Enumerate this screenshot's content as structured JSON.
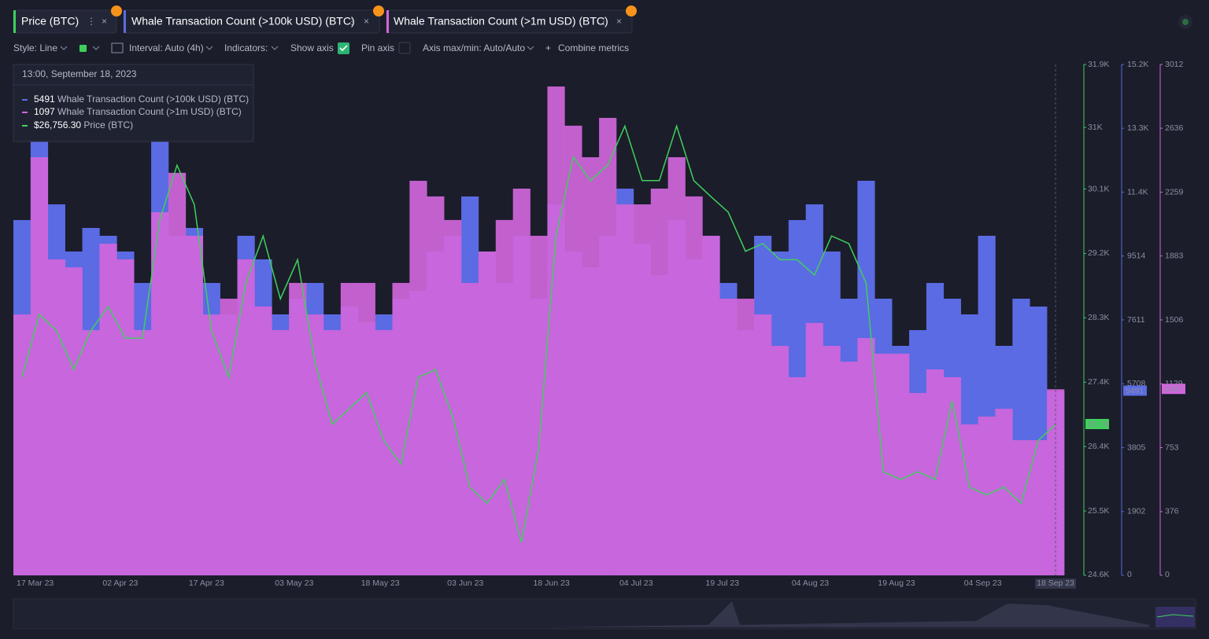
{
  "tabs": [
    "Price (BTC)",
    "Whale Transaction Count (>100k USD) (BTC)",
    "Whale Transaction Count (>1m USD) (BTC)"
  ],
  "toolbar": {
    "style": "Style: Line",
    "interval": "Interval: Auto (4h)",
    "indicators": "Indicators:",
    "show_axis": "Show axis",
    "pin_axis": "Pin axis",
    "axis_maxmin": "Axis max/min: Auto/Auto",
    "combine": "Combine metrics"
  },
  "tooltip": {
    "date": "13:00, September 18, 2023",
    "price_label": "$26,756.30"
  },
  "chart_data": {
    "type": "bar-line",
    "categories": [
      "17 Mar 23",
      null,
      null,
      null,
      null,
      "02 Apr 23",
      null,
      null,
      null,
      null,
      "17 Apr 23",
      null,
      null,
      null,
      null,
      "03 May 23",
      null,
      null,
      null,
      null,
      "18 May 23",
      null,
      null,
      null,
      null,
      "03 Jun 23",
      null,
      null,
      null,
      null,
      "18 Jun 23",
      null,
      null,
      null,
      null,
      "04 Jul 23",
      null,
      null,
      null,
      null,
      "19 Jul 23",
      null,
      null,
      null,
      null,
      "04 Aug 23",
      null,
      null,
      null,
      null,
      "19 Aug 23",
      null,
      null,
      null,
      null,
      "04 Sep 23",
      null,
      null,
      null,
      null,
      "18 Sep 23"
    ],
    "series": [
      {
        "name": "Whale Transaction Count (>100k USD) (BTC)",
        "color": "#5b6be3",
        "axis": "y2",
        "values": [
          10585,
          12927,
          11054,
          9648,
          10351,
          10117,
          9648,
          8712,
          13395,
          10117,
          10351,
          8712,
          7775,
          10117,
          9414,
          7775,
          8243,
          8712,
          7775,
          8009,
          7541,
          7775,
          8243,
          8478,
          9648,
          10117,
          11288,
          9648,
          8712,
          10117,
          8243,
          11054,
          9648,
          9180,
          10117,
          11522,
          9883,
          8946,
          10585,
          9414,
          10117,
          8712,
          7307,
          10117,
          9648,
          10585,
          11054,
          9648,
          8243,
          11756,
          8243,
          6838,
          7307,
          8712,
          8243,
          7775,
          10117,
          6838,
          8243,
          8009,
          5491
        ]
      },
      {
        "name": "Whale Transaction Count (>1m USD) (BTC)",
        "color": "#d066dc",
        "axis": "y3",
        "values": [
          1538,
          2465,
          1863,
          1816,
          1446,
          1955,
          1863,
          1446,
          2141,
          2373,
          2002,
          1538,
          1631,
          1863,
          1585,
          1446,
          1724,
          1538,
          1446,
          1724,
          1724,
          1446,
          1724,
          2326,
          2234,
          2095,
          1724,
          1909,
          2095,
          2280,
          2002,
          2882,
          2651,
          2465,
          2697,
          2187,
          2187,
          2280,
          2465,
          2234,
          2002,
          1631,
          1631,
          1538,
          1353,
          1168,
          1488,
          1353,
          1260,
          1399,
          1307,
          1307,
          1075,
          1214,
          1168,
          890,
          936,
          982,
          797,
          797,
          1097
        ]
      },
      {
        "name": "Price (BTC)",
        "color": "#3fd05c",
        "axis": "y",
        "badge": "26.7K",
        "values": [
          27430,
          28330,
          28100,
          27540,
          28100,
          28440,
          27990,
          27990,
          29680,
          30460,
          29900,
          28100,
          27430,
          28780,
          29450,
          28550,
          29110,
          27650,
          26760,
          26980,
          27210,
          26530,
          26190,
          27430,
          27540,
          26870,
          25860,
          25630,
          25970,
          25070,
          26420,
          29450,
          30580,
          30240,
          30460,
          31020,
          30240,
          30240,
          31020,
          30240,
          30010,
          29790,
          29230,
          29340,
          29110,
          29110,
          28890,
          29450,
          29340,
          28780,
          26080,
          25970,
          26080,
          25970,
          27090,
          25860,
          25750,
          25860,
          25630,
          26530,
          26756.3
        ]
      }
    ],
    "ylim": [
      24600,
      31900
    ],
    "yticks": [
      {
        "value": 24600,
        "label": "24.6K"
      },
      {
        "value": 25520,
        "label": "25.5K"
      },
      {
        "value": 26440,
        "label": "26.4K"
      },
      {
        "value": 27360,
        "label": "27.4K"
      },
      {
        "value": 28280,
        "label": "28.3K"
      },
      {
        "value": 29200,
        "label": "29.2K"
      },
      {
        "value": 30120,
        "label": "30.1K"
      },
      {
        "value": 31000,
        "label": "31K"
      },
      {
        "value": 31900,
        "label": "31.9K"
      }
    ],
    "y2lim": [
      0,
      15222
    ],
    "y2ticks": [
      0,
      1902,
      3805,
      5708,
      7611,
      9514,
      {
        "value": 11417,
        "label": "11.4K"
      },
      {
        "value": 13320,
        "label": "13.3K"
      },
      {
        "value": 15222,
        "label": "15.2K"
      }
    ],
    "y3lim": [
      0,
      3012
    ],
    "y3ticks": [
      0,
      376,
      753,
      1129,
      1506,
      1883,
      2259,
      2636,
      3012
    ]
  }
}
